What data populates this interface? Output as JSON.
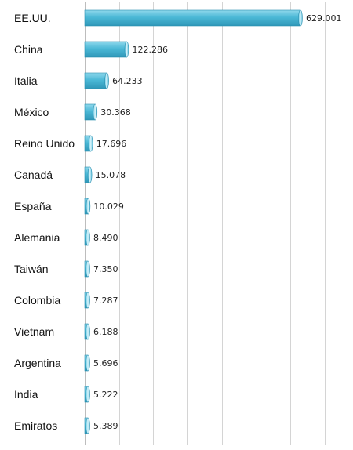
{
  "chart_data": {
    "type": "bar",
    "orientation": "horizontal",
    "categories": [
      "EE.UU.",
      "China",
      "Italia",
      "México",
      "Reino Unido",
      "Canadá",
      "España",
      "Alemania",
      "Taiwán",
      "Colombia",
      "Vietnam",
      "Argentina",
      "India",
      "Emiratos"
    ],
    "values": [
      629001,
      122286,
      64233,
      30368,
      17696,
      15078,
      10029,
      8490,
      7350,
      7287,
      6188,
      5696,
      5222,
      5389
    ],
    "value_labels": [
      "629.001",
      "122.286",
      "64.233",
      "30.368",
      "17.696",
      "15.078",
      "10.029",
      "8.490",
      "7.350",
      "7.287",
      "6.188",
      "5.696",
      "5.222",
      "5.389"
    ],
    "xlim": [
      0,
      700000
    ],
    "grid": true,
    "bar_color": "#4bb8d6",
    "bar_highlight_color": "#a6e4f3",
    "bar_edge_color": "#2a8fb0"
  }
}
